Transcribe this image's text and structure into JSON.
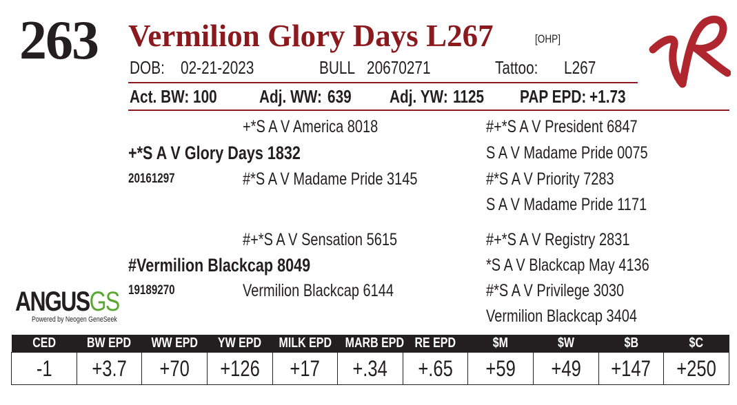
{
  "lot_number": "263",
  "name": "Vermilion Glory Days L267",
  "tag": "[OHP]",
  "details": [
    {
      "label": "DOB:",
      "value": "02-21-2023"
    },
    {
      "label": "BULL",
      "value": "20670271"
    },
    {
      "label": "Tattoo:",
      "value": "L267"
    }
  ],
  "performance": [
    {
      "label": "Act. BW:",
      "value": "100"
    },
    {
      "label": "Adj. WW:",
      "value": "639"
    },
    {
      "label": "Adj. YW:",
      "value": "1125"
    },
    {
      "label": "PAP EPD:",
      "value": "+1.73"
    }
  ],
  "pedigree": {
    "sire": {
      "name": "+*S A V Glory Days 1832",
      "registration": "20161297",
      "sire": "+*S A V America 8018",
      "dam": "#*S A V Madame Pride 3145",
      "sire_sire": "#+*S A V President 6847",
      "sire_dam": "S A V Madame Pride 0075",
      "dam_sire": "#*S A V Priority 7283",
      "dam_dam": "S A V Madame Pride 1171"
    },
    "dam": {
      "name": "#Vermilion Blackcap 8049",
      "registration": "19189270",
      "sire": "#+*S A V Sensation 5615",
      "dam": "Vermilion Blackcap 6144",
      "sire_sire": "#+*S A V Registry 2831",
      "sire_dam": "*S A V Blackcap May 4136",
      "dam_sire": "#*S A V Privilege 3030",
      "dam_dam": "Vermilion Blackcap 3404"
    }
  },
  "logo": {
    "brand": "ANGUS",
    "suffix": "GS",
    "tagline": "Powered by Neogen GeneSeek"
  },
  "epd_table": {
    "headers": [
      "CED",
      "BW EPD",
      "WW EPD",
      "YW EPD",
      "MILK EPD",
      "MARB EPD",
      "RE EPD",
      "$M",
      "$W",
      "$B",
      "$C"
    ],
    "values": [
      "-1",
      "+3.7",
      "+70",
      "+126",
      "+17",
      "+.34",
      "+.65",
      "+59",
      "+49",
      "+147",
      "+250"
    ]
  }
}
